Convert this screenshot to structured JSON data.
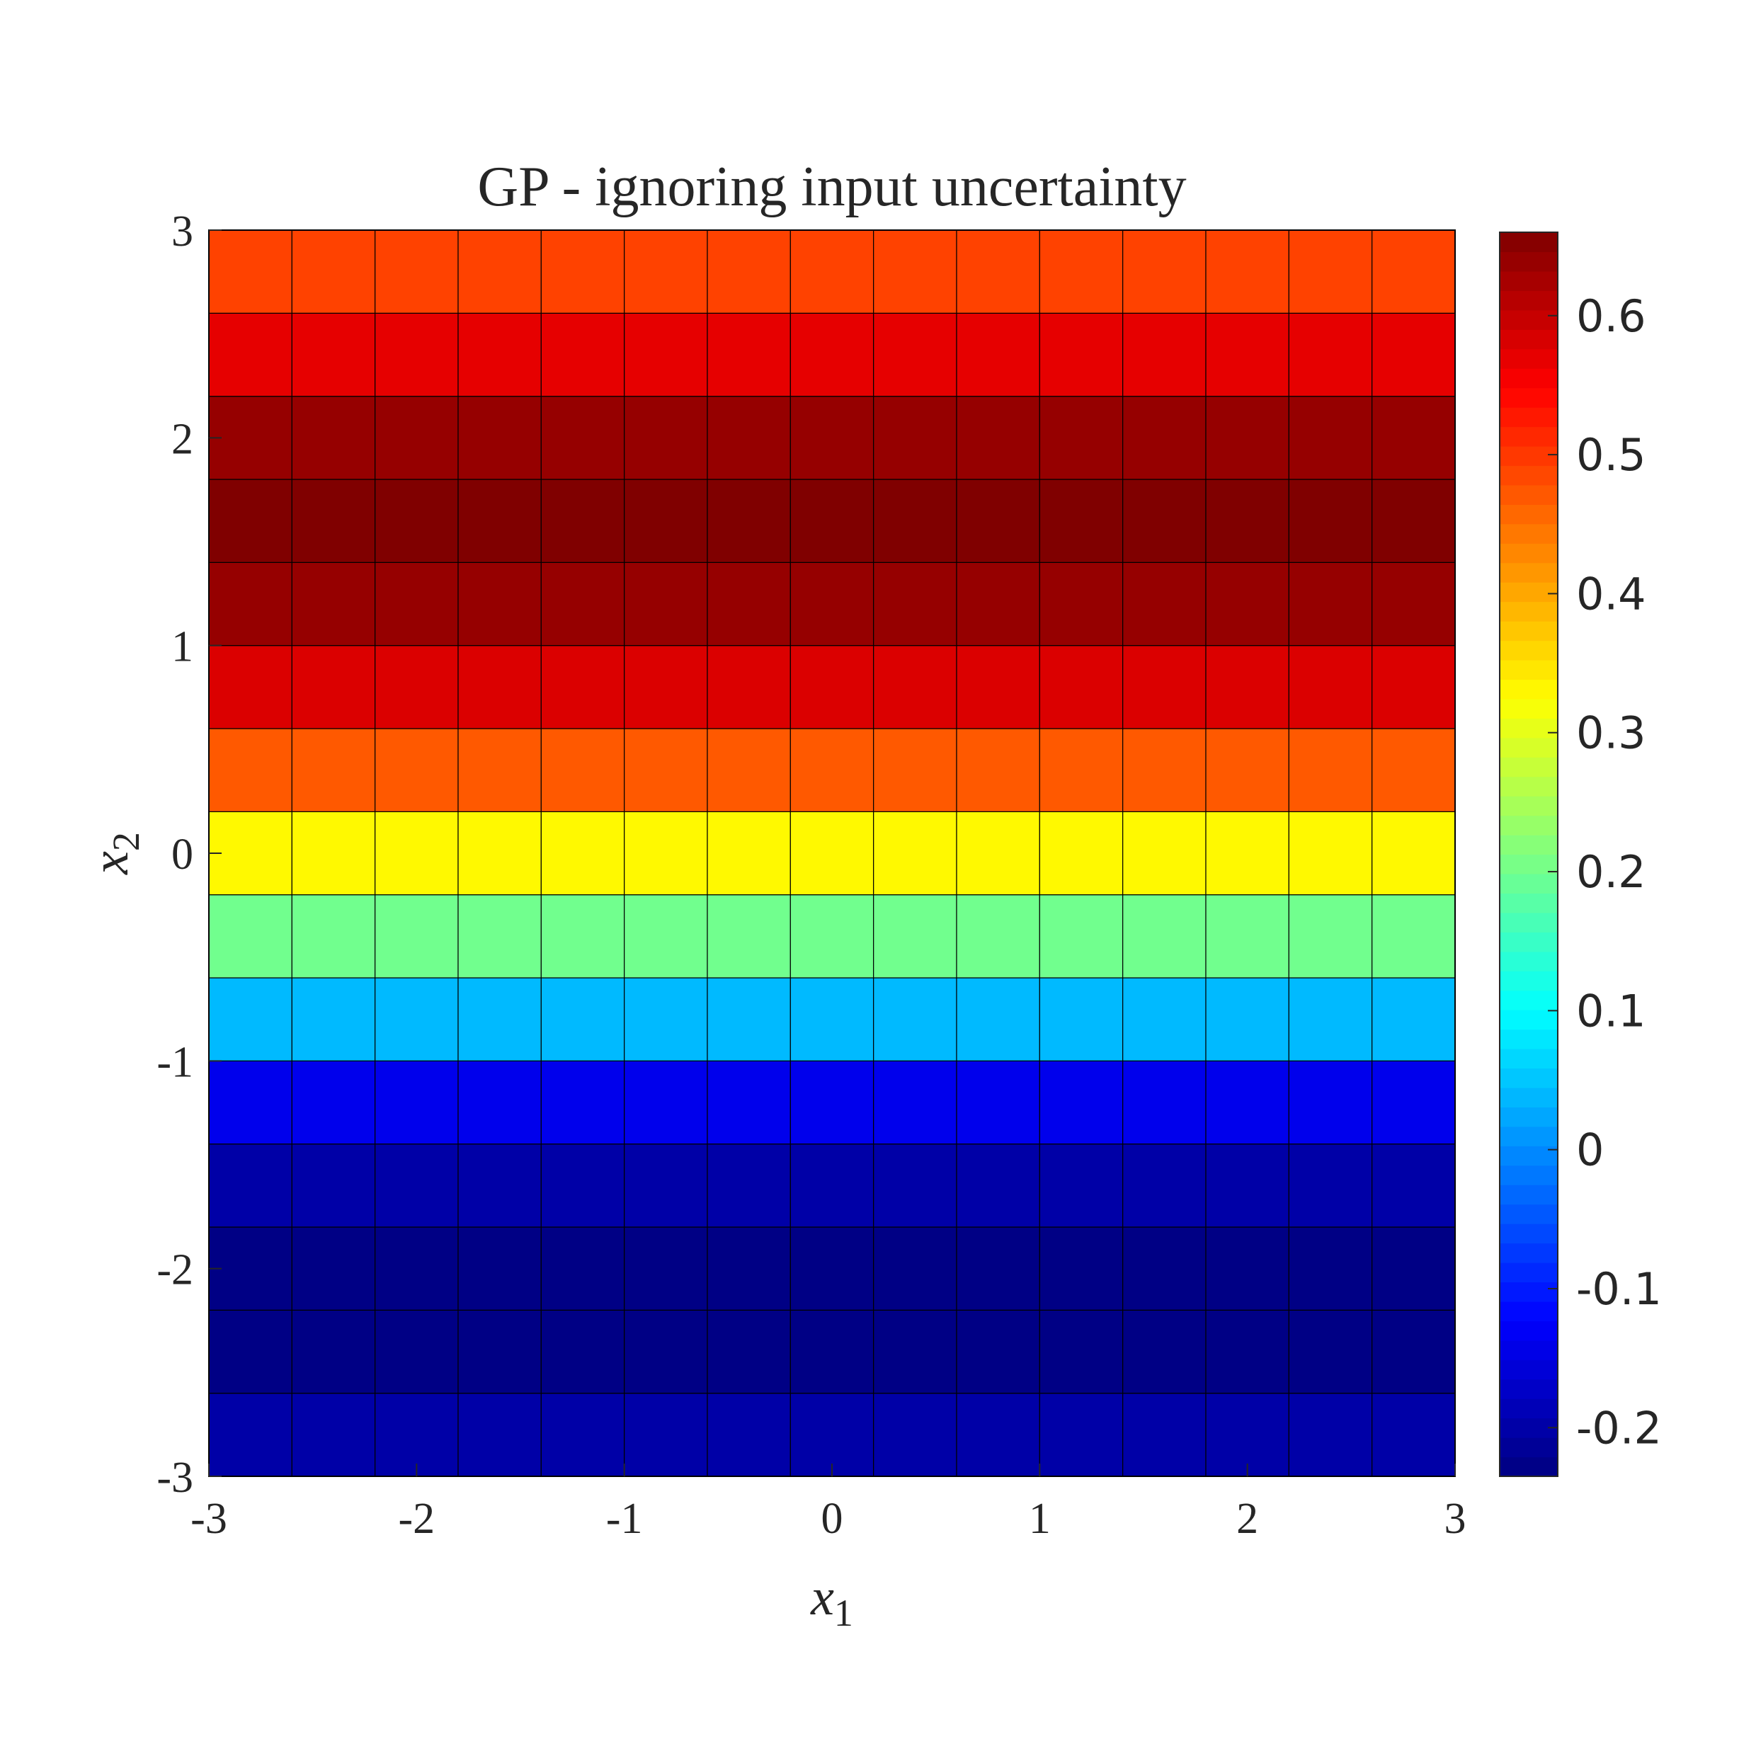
{
  "chart_data": {
    "type": "heatmap",
    "title": "GP - ignoring input uncertainty",
    "xlabel": "x",
    "xlabel_sub": "1",
    "ylabel": "x",
    "ylabel_sub": "2",
    "xlim": [
      -3,
      3
    ],
    "ylim": [
      -3,
      3
    ],
    "x_ticks": [
      "-3",
      "-2",
      "-1",
      "0",
      "1",
      "2",
      "3"
    ],
    "y_ticks": [
      "-3",
      "-2",
      "-1",
      "0",
      "1",
      "2",
      "3"
    ],
    "x_tick_values": [
      -3,
      -2,
      -1,
      0,
      1,
      2,
      3
    ],
    "y_tick_values": [
      -3,
      -2,
      -1,
      0,
      1,
      2,
      3
    ],
    "grid_cols": 15,
    "grid_rows": 15,
    "row_values_bottom_to_top": [
      -0.2,
      -0.23,
      -0.23,
      -0.2,
      -0.14,
      0.04,
      0.2,
      0.33,
      0.47,
      0.58,
      0.64,
      0.66,
      0.64,
      0.57,
      0.49
    ],
    "colormap": "jet",
    "colorbar": {
      "min": -0.235,
      "max": 0.66,
      "tick_values": [
        -0.2,
        -0.1,
        0,
        0.1,
        0.2,
        0.3,
        0.4,
        0.5,
        0.6
      ],
      "tick_labels": [
        "-0.2",
        "-0.1",
        "0",
        "0.1",
        "0.2",
        "0.3",
        "0.4",
        "0.5",
        "0.6"
      ],
      "placement": "right"
    },
    "grid": "cell edges drawn"
  }
}
